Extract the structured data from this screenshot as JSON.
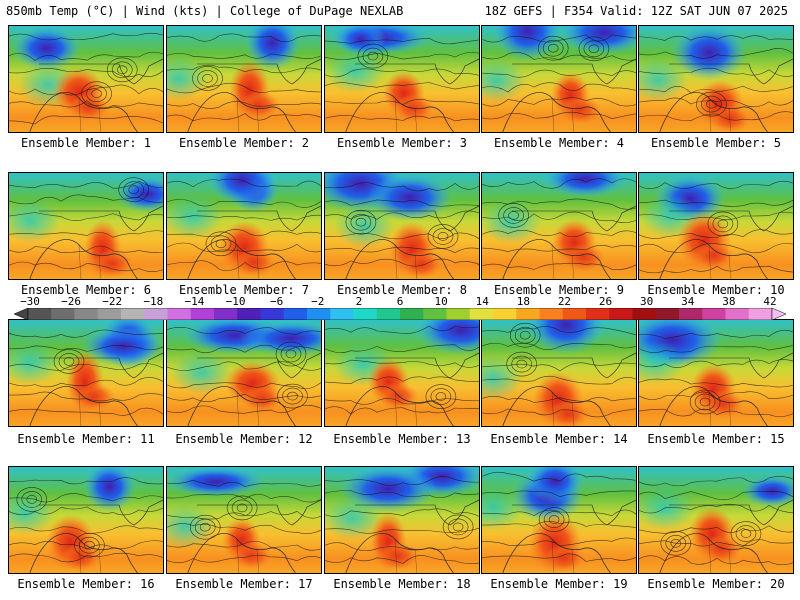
{
  "header": {
    "title": "850mb Temp (°C) | Wind (kts) | College of DuPage NEXLAB",
    "run": "18Z GEFS | F354 Valid: 12Z SAT JUN 07 2025"
  },
  "panels": [
    {
      "label": "Ensemble Member: 1"
    },
    {
      "label": "Ensemble Member: 2"
    },
    {
      "label": "Ensemble Member: 3"
    },
    {
      "label": "Ensemble Member: 4"
    },
    {
      "label": "Ensemble Member: 5"
    },
    {
      "label": "Ensemble Member: 6"
    },
    {
      "label": "Ensemble Member: 7"
    },
    {
      "label": "Ensemble Member: 8"
    },
    {
      "label": "Ensemble Member: 9"
    },
    {
      "label": "Ensemble Member: 10"
    },
    {
      "label": "Ensemble Member: 11"
    },
    {
      "label": "Ensemble Member: 12"
    },
    {
      "label": "Ensemble Member: 13"
    },
    {
      "label": "Ensemble Member: 14"
    },
    {
      "label": "Ensemble Member: 15"
    },
    {
      "label": "Ensemble Member: 16"
    },
    {
      "label": "Ensemble Member: 17"
    },
    {
      "label": "Ensemble Member: 18"
    },
    {
      "label": "Ensemble Member: 19"
    },
    {
      "label": "Ensemble Member: 20"
    }
  ],
  "colorbar": {
    "ticks": [
      "−30",
      "−26",
      "−22",
      "−18",
      "−14",
      "−10",
      "−6",
      "−2",
      "2",
      "6",
      "10",
      "14",
      "18",
      "22",
      "26",
      "30",
      "34",
      "38",
      "42"
    ],
    "colors": [
      "#555555",
      "#6e6e6e",
      "#888888",
      "#9c9c9c",
      "#b4b4b4",
      "#c8a0d8",
      "#d070e0",
      "#b040d8",
      "#8030c8",
      "#5020b8",
      "#3838d8",
      "#2060e8",
      "#2090f0",
      "#30c0f0",
      "#20d8c8",
      "#20c890",
      "#30b050",
      "#60c040",
      "#a0d030",
      "#e0e040",
      "#f8d030",
      "#f8a820",
      "#f88020",
      "#f05818",
      "#e03018",
      "#c81818",
      "#a01010",
      "#901828",
      "#b02868",
      "#d040a0",
      "#e070c8",
      "#f0a0e0"
    ]
  }
}
